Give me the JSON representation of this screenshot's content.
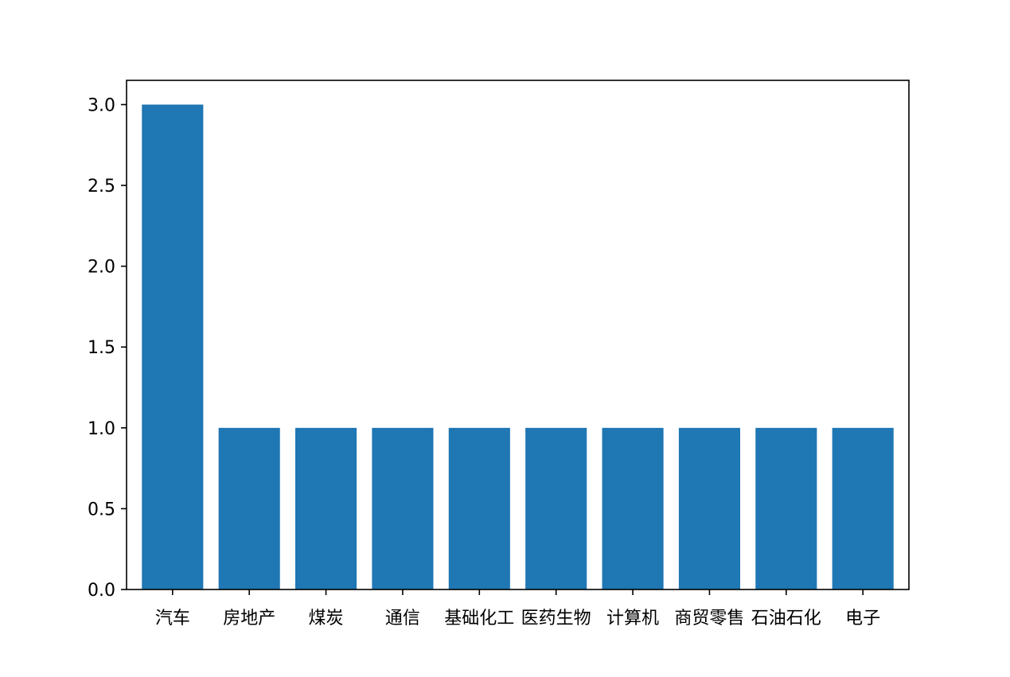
{
  "chart_data": {
    "type": "bar",
    "categories": [
      "汽车",
      "房地产",
      "煤炭",
      "通信",
      "基础化工",
      "医药生物",
      "计算机",
      "商贸零售",
      "石油石化",
      "电子"
    ],
    "values": [
      3,
      1,
      1,
      1,
      1,
      1,
      1,
      1,
      1,
      1
    ],
    "ylim": [
      0,
      3.15
    ],
    "yticks": [
      "0.0",
      "0.5",
      "1.0",
      "1.5",
      "2.0",
      "2.5",
      "3.0"
    ],
    "ytick_values": [
      0,
      0.5,
      1.0,
      1.5,
      2.0,
      2.5,
      3.0
    ],
    "title": "",
    "xlabel": "",
    "ylabel": "",
    "grid": false,
    "bar_color": "#1f77b4"
  }
}
